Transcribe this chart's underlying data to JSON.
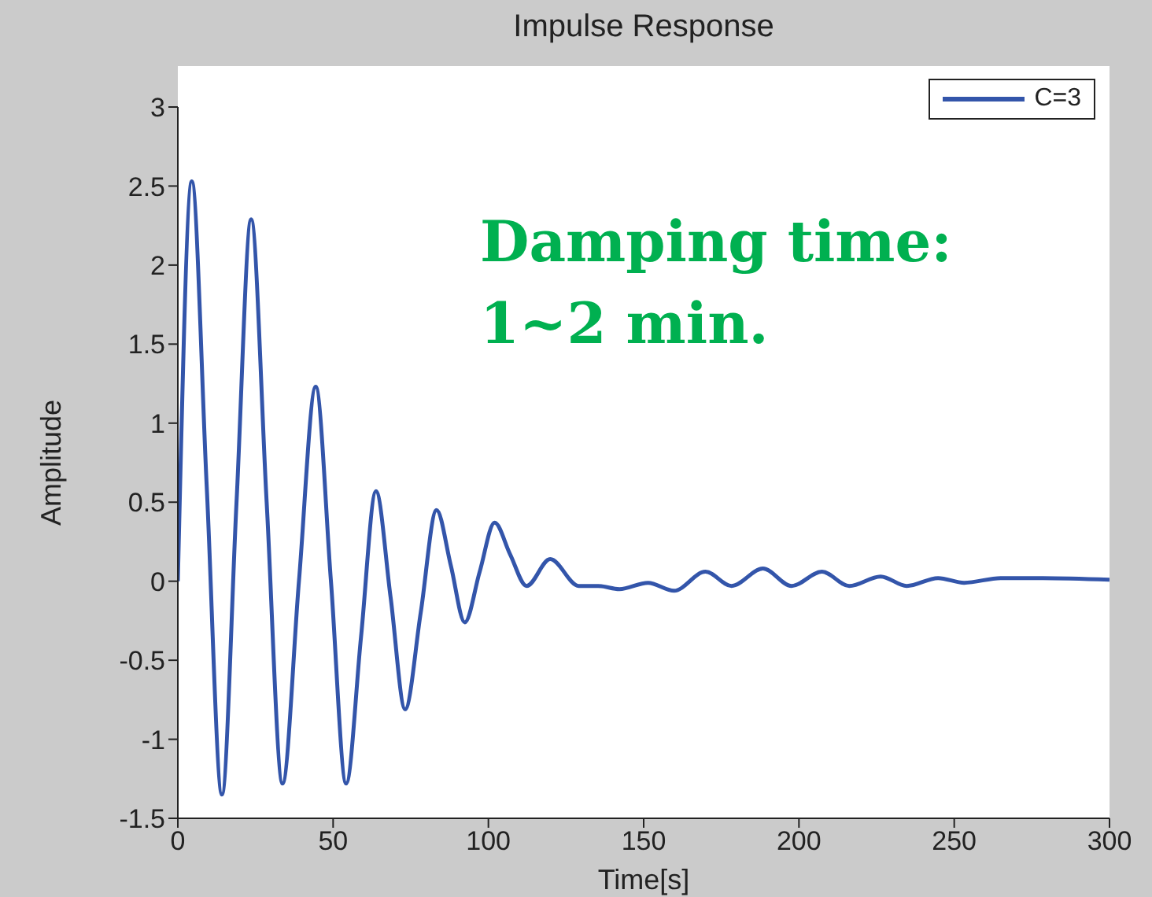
{
  "chart_data": {
    "type": "line",
    "title": "Impulse Response",
    "xlabel": "Time[s]",
    "ylabel": "Amplitude",
    "annotations": [
      "Damping time:\n1~2 min."
    ],
    "xlim": [
      0,
      300
    ],
    "xticks": [
      0,
      50,
      100,
      150,
      200,
      250,
      300
    ],
    "ylim": [
      -1.5,
      3
    ],
    "yticks": [
      -1.5,
      -1,
      -0.5,
      0,
      0.5,
      1,
      1.5,
      2,
      2.5,
      3
    ],
    "grid": false,
    "legend": "top right",
    "series": [
      {
        "name": "C=3",
        "color": "#3355aa",
        "x": [
          0,
          4.5,
          9.3,
          14.2,
          18.9,
          23.6,
          28.6,
          33.7,
          39,
          44.4,
          49.3,
          54.2,
          59,
          63.8,
          68.5,
          73.2,
          78.2,
          83.3,
          87.9,
          92.4,
          97.2,
          102,
          107,
          112.3,
          119.9,
          129.1,
          135.4,
          142.2,
          151.4,
          159.8,
          169.9,
          178.3,
          188.4,
          197.6,
          207.4,
          216.2,
          226.3,
          234.7,
          244.8,
          253.2,
          265,
          278.5,
          300
        ],
        "values": [
          0,
          2.53,
          0.6,
          -1.35,
          0.5,
          2.29,
          0.5,
          -1.28,
          0,
          1.23,
          0,
          -1.28,
          -0.35,
          0.57,
          -0.1,
          -0.81,
          -0.2,
          0.45,
          0.1,
          -0.26,
          0.06,
          0.37,
          0.17,
          -0.03,
          0.14,
          -0.03,
          -0.03,
          -0.05,
          -0.01,
          -0.06,
          0.06,
          -0.03,
          0.08,
          -0.03,
          0.06,
          -0.03,
          0.03,
          -0.03,
          0.02,
          -0.01,
          0.02,
          0.02,
          0.01
        ]
      }
    ]
  }
}
